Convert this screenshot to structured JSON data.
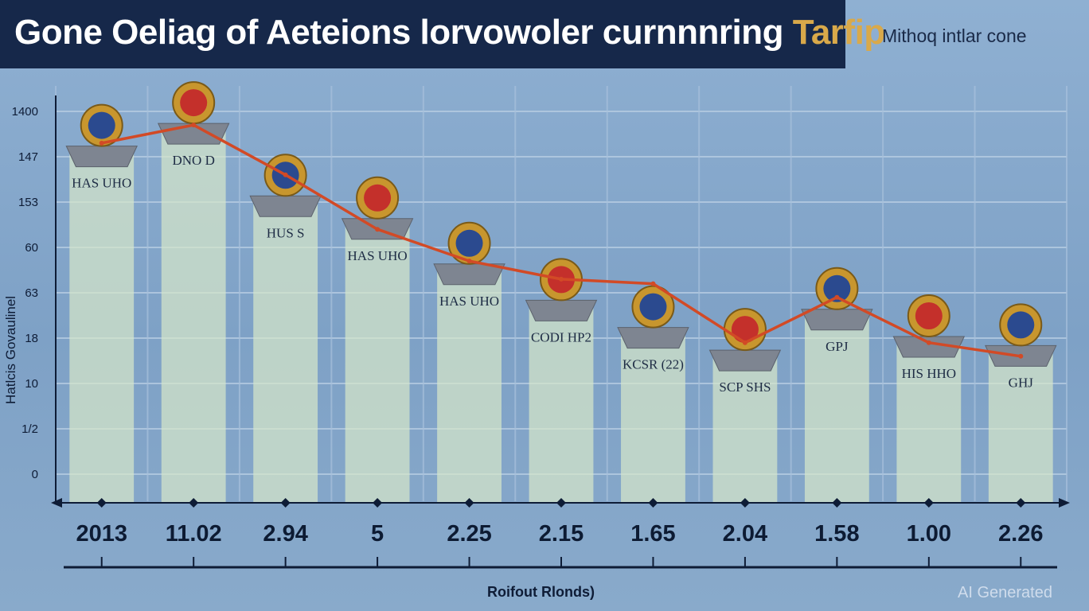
{
  "header": {
    "title": "Gone Oeliag of Aeteions lorvowoler curnnnring",
    "title_accent": "Tarfip",
    "subtitle": "Mithoq intlar cone"
  },
  "watermark": "AI Generated",
  "colors": {
    "title_bg": "#16284a",
    "accent": "#d9a94a",
    "bar": "#cfe0c8",
    "line": "#d24a26"
  },
  "chart_data": {
    "type": "bar",
    "title": "Gone Oeliag of Aeteions lorvowoler curnnnring Tarfip",
    "xlabel": "Roifout Rlonds)",
    "ylabel": "Hatlcis Govaulinel",
    "y_tick_labels": [
      "0",
      "1/2",
      "10",
      "18",
      "63",
      "60",
      "153",
      "147",
      "1400"
    ],
    "categories": [
      "2013",
      "11.02",
      "2.94",
      "5",
      "2.25",
      "2.15",
      "1.65",
      "2.04",
      "1.58",
      "1.00",
      "2.26"
    ],
    "value_labels": [
      "2013",
      "11.02",
      "2.94",
      "5",
      "2.25",
      "2.15",
      "1.65",
      "2.04",
      "1.58",
      "1.00",
      "2.26"
    ],
    "values": [
      7.2,
      7.7,
      6.1,
      5.6,
      4.6,
      3.8,
      3.2,
      2.7,
      3.6,
      3.0,
      2.8
    ],
    "ylim": [
      0,
      8
    ],
    "grid": true,
    "series": [
      {
        "values": [
          7.3,
          7.7,
          6.6,
          5.4,
          4.7,
          4.3,
          4.2,
          2.9,
          3.9,
          2.9,
          2.6
        ]
      }
    ],
    "bar_captions": [
      "HAS UHO",
      "DNO D",
      "HUS S",
      "HAS UHO",
      "HAS UHO",
      "CODI HP2",
      "KCSR (22)",
      "SCP SHS",
      "GPJ",
      "HIS HHO",
      "GHJ"
    ],
    "icons": [
      "spain-flag-medallion-icon",
      "castle-crown-icon",
      "key-coin-icon",
      "red-flag-medallion-icon",
      "dollar-sign-icon",
      "airplane-icon",
      "globe-flag-icon",
      "coat-of-arms-icon",
      "tricolor-flag-circle-icon",
      "bull-flag-icon",
      "crown-books-icon"
    ]
  }
}
